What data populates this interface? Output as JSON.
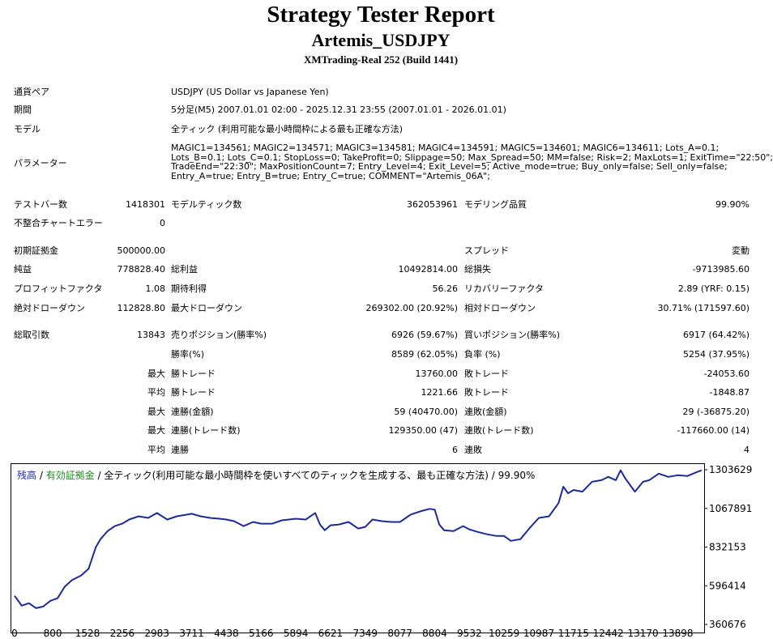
{
  "header": {
    "title": "Strategy Tester Report",
    "subtitle": "Artemis_USDJPY",
    "build": "XMTrading-Real 252 (Build 1441)"
  },
  "info": {
    "pair_label": "通貨ペア",
    "pair_value": "USDJPY (US Dollar vs Japanese Yen)",
    "period_label": "期間",
    "period_value": "5分足(M5) 2007.01.01 02:00 - 2025.12.31 23:55 (2007.01.01 - 2026.01.01)",
    "model_label": "モデル",
    "model_value": "全ティック (利用可能な最小時間枠による最も正確な方法)",
    "params_label": "パラメーター",
    "params_lines": [
      "MAGIC1=134561; MAGIC2=134571; MAGIC3=134581; MAGIC4=134591; MAGIC5=134601; MAGIC6=134611; Lots_A=0.1;",
      "Lots_B=0.1; Lots_C=0.1; StopLoss=0; TakeProfit=0; Slippage=50; Max_Spread=50; MM=false; Risk=2; MaxLots=1; ExitTime=\"22:50\";",
      "TradeEnd=\"22:30\"; MaxPositionCount=7; Entry_Level=4; Exit_Level=5; Active_mode=true; Buy_only=false; Sell_only=false;",
      "Entry_A=true; Entry_B=true; Entry_C=true; COMMENT=\"Artemis_06A\";"
    ]
  },
  "stats": {
    "bars_label": "テストバー数",
    "bars_value": "1418301",
    "ticks_label": "モデルティック数",
    "ticks_value": "362053961",
    "quality_label": "モデリング品質",
    "quality_value": "99.90%",
    "mismatch_label": "不整合チャートエラー",
    "mismatch_value": "0",
    "deposit_label": "初期証拠金",
    "deposit_value": "500000.00",
    "spread_label": "スプレッド",
    "spread_value": "変動",
    "net_label": "純益",
    "net_value": "778828.40",
    "gross_profit_label": "総利益",
    "gross_profit_value": "10492814.00",
    "gross_loss_label": "総損失",
    "gross_loss_value": "-9713985.60",
    "pf_label": "プロフィットファクタ",
    "pf_value": "1.08",
    "payoff_label": "期待利得",
    "payoff_value": "56.26",
    "recovery_label": "リカバリーファクタ",
    "recovery_value": "2.89 (YRF: 0.15)",
    "abs_dd_label": "絶対ドローダウン",
    "abs_dd_value": "112828.80",
    "max_dd_label": "最大ドローダウン",
    "max_dd_value": "269302.00 (20.92%)",
    "rel_dd_label": "相対ドローダウン",
    "rel_dd_value": "30.71% (171597.60)",
    "trades_label": "総取引数",
    "trades_value": "13843",
    "short_label": "売りポジション(勝率%)",
    "short_value": "6926 (59.67%)",
    "long_label": "買いポジション(勝率%)",
    "long_value": "6917 (64.42%)",
    "win_label": "勝率(%)",
    "win_value": "8589 (62.05%)",
    "loss_label": "負率 (%)",
    "loss_value": "5254 (37.95%)",
    "largest_label": "最大",
    "largest_win_label": "勝トレード",
    "largest_win_value": "13760.00",
    "largest_loss_label": "敗トレード",
    "largest_loss_value": "-24053.60",
    "average_label": "平均",
    "avg_win_label": "勝トレード",
    "avg_win_value": "1221.66",
    "avg_loss_label": "敗トレード",
    "avg_loss_value": "-1848.87",
    "max1_label": "最大",
    "cons_wins_money_label": "連勝(金額)",
    "cons_wins_money_value": "59 (40470.00)",
    "cons_loss_money_label": "連敗(金額)",
    "cons_loss_money_value": "29 (-36875.20)",
    "max2_label": "最大",
    "cons_wins_count_label": "連勝(トレード数)",
    "cons_wins_count_value": "129350.00 (47)",
    "cons_loss_count_label": "連敗(トレード数)",
    "cons_loss_count_value": "-117660.00 (14)",
    "avg2_label": "平均",
    "avg_cons_wins_label": "連勝",
    "avg_cons_wins_value": "6",
    "avg_cons_loss_label": "連敗",
    "avg_cons_loss_value": "4"
  },
  "chart_head": {
    "balance": "残高",
    "sep1": " / ",
    "equity": "有効証拠金",
    "rest": " / 全ティック(利用可能な最小時間枠を使いすべてのティックを生成する、最も正確な方法) / 99.90%"
  },
  "colors": {
    "balance": "#1c2a9c",
    "equity": "#1a8a1a"
  },
  "chart_data": {
    "type": "line",
    "title": "",
    "xlabel": "",
    "ylabel": "",
    "x_ticks": [
      "0",
      "800",
      "1528",
      "2256",
      "2983",
      "3711",
      "4438",
      "5166",
      "5894",
      "6621",
      "7349",
      "8077",
      "8804",
      "9532",
      "10259",
      "10987",
      "11715",
      "12442",
      "13170",
      "13898"
    ],
    "y_ticks": [
      "1303629",
      "1067891",
      "832153",
      "596414",
      "360676"
    ],
    "xlim": [
      0,
      14400
    ],
    "ylim": [
      360676,
      1303629
    ],
    "series": [
      {
        "name": "残高",
        "x": [
          0,
          150,
          300,
          450,
          600,
          750,
          900,
          1050,
          1200,
          1400,
          1550,
          1700,
          1800,
          1950,
          2100,
          2256,
          2400,
          2600,
          2800,
          2983,
          3200,
          3400,
          3711,
          3900,
          4100,
          4300,
          4438,
          4600,
          4800,
          5000,
          5166,
          5400,
          5600,
          5894,
          6100,
          6300,
          6400,
          6500,
          6621,
          6800,
          7000,
          7200,
          7349,
          7500,
          7700,
          7900,
          8077,
          8300,
          8500,
          8700,
          8804,
          8900,
          9000,
          9200,
          9400,
          9532,
          9700,
          9900,
          10100,
          10259,
          10400,
          10600,
          10800,
          10987,
          11200,
          11400,
          11500,
          11600,
          11715,
          11900,
          12100,
          12300,
          12442,
          12600,
          12700,
          12800,
          13000,
          13170,
          13300,
          13500,
          13700,
          13898,
          14100,
          14300,
          14400
        ],
        "values": [
          535000,
          475000,
          490000,
          460000,
          470000,
          505000,
          520000,
          590000,
          630000,
          660000,
          700000,
          830000,
          880000,
          930000,
          960000,
          975000,
          1000000,
          1020000,
          1010000,
          1040000,
          1000000,
          1020000,
          1035000,
          1020000,
          1010000,
          1005000,
          1000000,
          990000,
          960000,
          985000,
          975000,
          975000,
          995000,
          1005000,
          1000000,
          1040000,
          970000,
          935000,
          965000,
          970000,
          985000,
          945000,
          955000,
          1000000,
          990000,
          985000,
          985000,
          1030000,
          1050000,
          1065000,
          1060000,
          970000,
          935000,
          930000,
          960000,
          940000,
          925000,
          910000,
          900000,
          900000,
          870000,
          880000,
          950000,
          1010000,
          1020000,
          1100000,
          1200000,
          1160000,
          1180000,
          1170000,
          1230000,
          1240000,
          1260000,
          1240000,
          1300000,
          1250000,
          1170000,
          1230000,
          1240000,
          1280000,
          1260000,
          1270000,
          1265000,
          1290000,
          1300000
        ]
      }
    ],
    "grid": false,
    "legend": "top-left"
  }
}
